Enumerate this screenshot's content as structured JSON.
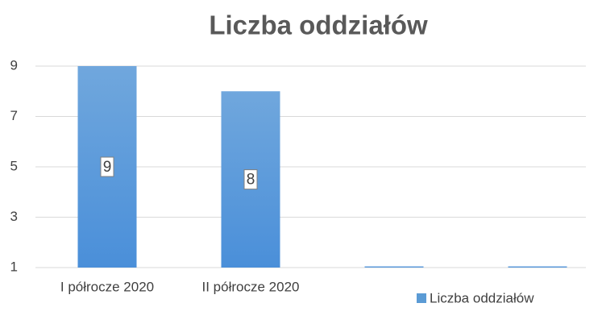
{
  "chart_data": {
    "type": "bar",
    "title": "Liczba oddziałów",
    "categories": [
      "I półrocze 2020",
      "II półrocze 2020",
      null,
      null
    ],
    "series": [
      {
        "name": "Liczba oddziałów",
        "color": "#5b9bd5",
        "values": [
          9,
          8,
          1,
          1
        ]
      }
    ],
    "ylim": [
      1,
      9
    ],
    "yticks": [
      1,
      3,
      5,
      7,
      9
    ],
    "grid": true,
    "legend": "bottom-right",
    "data_labels": true
  }
}
